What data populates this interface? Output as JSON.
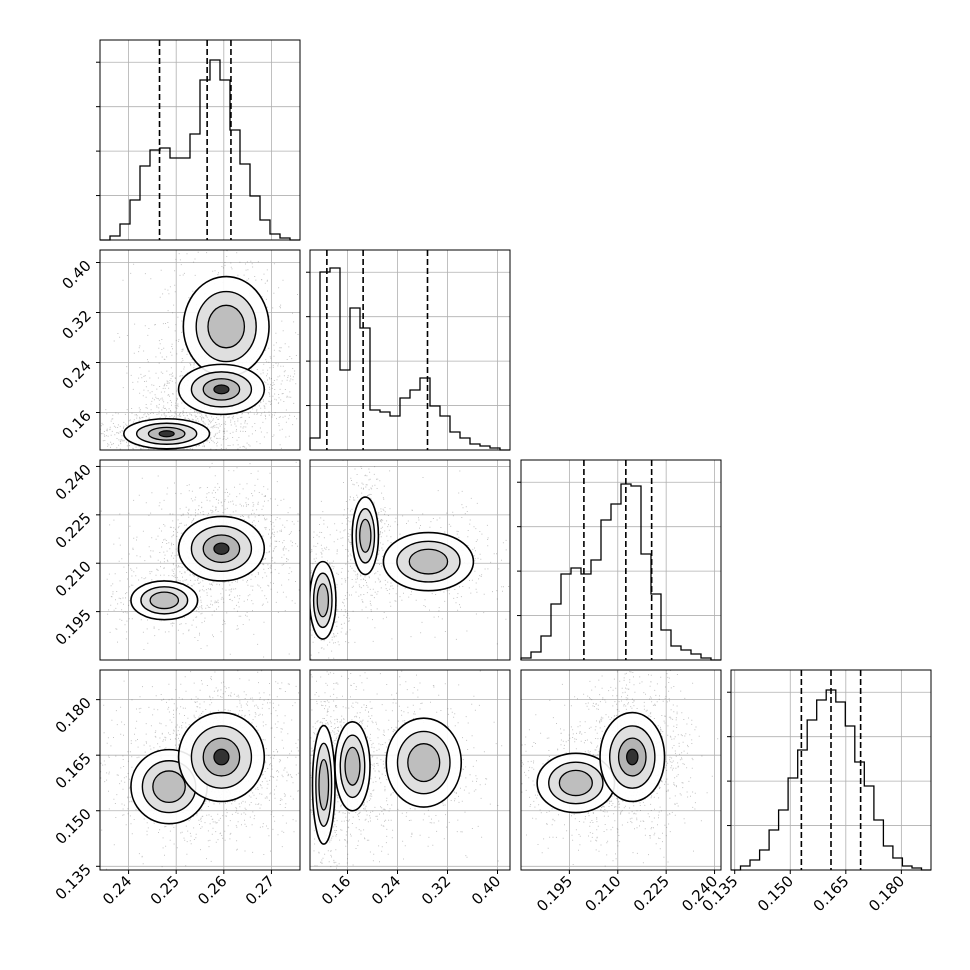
{
  "chart_data": {
    "type": "corner",
    "title": "",
    "grid": true,
    "variables": [
      {
        "ticks": [
          "0.24",
          "0.25",
          "0.26",
          "0.27"
        ],
        "range": [
          0.234,
          0.276
        ],
        "quantiles": [
          0.2465,
          0.2565,
          0.2615
        ]
      },
      {
        "ticks": [
          "0.16",
          "0.24",
          "0.32",
          "0.40"
        ],
        "range": [
          0.1,
          0.42
        ],
        "quantiles": [
          0.127,
          0.185,
          0.288
        ]
      },
      {
        "ticks": [
          "0.195",
          "0.210",
          "0.225",
          "0.240"
        ],
        "range": [
          0.18,
          0.242
        ],
        "quantiles": [
          0.1995,
          0.2125,
          0.2205
        ]
      },
      {
        "ticks": [
          "0.135",
          "0.150",
          "0.165",
          "0.180"
        ],
        "range": [
          0.134,
          0.188
        ],
        "quantiles": [
          0.153,
          0.161,
          0.169
        ]
      }
    ],
    "histograms": [
      [
        0,
        0.02,
        0.08,
        0.2,
        0.37,
        0.45,
        0.46,
        0.41,
        0.41,
        0.53,
        0.8,
        0.9,
        0.8,
        0.55,
        0.38,
        0.22,
        0.1,
        0.03,
        0.01,
        0
      ],
      [
        0.06,
        0.89,
        0.91,
        0.4,
        0.71,
        0.61,
        0.2,
        0.19,
        0.17,
        0.26,
        0.3,
        0.36,
        0.22,
        0.17,
        0.09,
        0.06,
        0.03,
        0.02,
        0.01,
        0
      ],
      [
        0.01,
        0.04,
        0.12,
        0.28,
        0.43,
        0.46,
        0.43,
        0.5,
        0.7,
        0.78,
        0.88,
        0.87,
        0.53,
        0.33,
        0.15,
        0.07,
        0.05,
        0.03,
        0.01,
        0
      ],
      [
        0,
        0.02,
        0.05,
        0.1,
        0.2,
        0.3,
        0.46,
        0.6,
        0.75,
        0.85,
        0.9,
        0.84,
        0.72,
        0.54,
        0.42,
        0.25,
        0.12,
        0.06,
        0.02,
        0.01,
        0
      ]
    ],
    "modes": {
      "1-0": [
        [
          0.248,
          0.126,
          0.0045,
          0.012,
          0.55
        ],
        [
          0.2605,
          0.2975,
          0.0045,
          0.04,
          0.3
        ],
        [
          0.2595,
          0.197,
          0.0045,
          0.02,
          0.6
        ]
      ],
      "2-0": [
        [
          0.2475,
          0.1985,
          0.0035,
          0.003,
          0.2
        ],
        [
          0.2595,
          0.2145,
          0.0045,
          0.005,
          0.8
        ]
      ],
      "2-1": [
        [
          0.1205,
          0.1985,
          0.0105,
          0.006,
          0.3
        ],
        [
          0.1885,
          0.2185,
          0.0105,
          0.006,
          0.25
        ],
        [
          0.2895,
          0.2105,
          0.036,
          0.0045,
          0.3
        ]
      ],
      "3-0": [
        [
          0.2485,
          0.1565,
          0.004,
          0.005,
          0.3
        ],
        [
          0.2595,
          0.1645,
          0.0045,
          0.006,
          0.8
        ]
      ],
      "3-1": [
        [
          0.122,
          0.157,
          0.009,
          0.008,
          0.3
        ],
        [
          0.168,
          0.162,
          0.014,
          0.006,
          0.4
        ],
        [
          0.282,
          0.163,
          0.03,
          0.006,
          0.3
        ]
      ],
      "3-2": [
        [
          0.197,
          0.1575,
          0.006,
          0.004,
          0.25
        ],
        [
          0.2145,
          0.1645,
          0.005,
          0.006,
          0.75
        ]
      ]
    }
  }
}
